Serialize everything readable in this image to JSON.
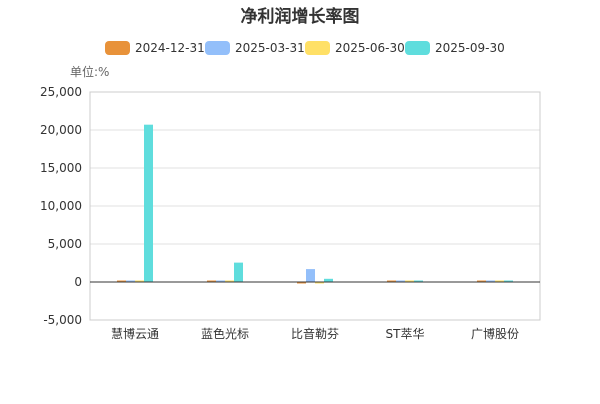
{
  "chart_data": {
    "type": "bar",
    "title": "净利润增长率图",
    "unit_label": "单位:%",
    "categories": [
      "慧博云通",
      "蓝色光标",
      "比音勒芬",
      "ST萃华",
      "广博股份"
    ],
    "series": [
      {
        "name": "2024-12-31",
        "color": "#E8923A",
        "values": [
          120,
          8,
          -60,
          10,
          25
        ]
      },
      {
        "name": "2025-03-31",
        "color": "#93BFFA",
        "values": [
          5,
          10,
          1700,
          30,
          50
        ]
      },
      {
        "name": "2025-06-30",
        "color": "#FFE066",
        "values": [
          40,
          15,
          -30,
          90,
          100
        ]
      },
      {
        "name": "2025-09-30",
        "color": "#5FDDDD",
        "values": [
          20700,
          2550,
          420,
          120,
          20
        ]
      }
    ],
    "ylim": [
      -5000,
      25000
    ],
    "yticks": [
      -5000,
      0,
      5000,
      10000,
      15000,
      20000,
      25000
    ],
    "ytick_labels": [
      "-5,000",
      "0",
      "5,000",
      "10,000",
      "15,000",
      "20,000",
      "25,000"
    ],
    "grid": true,
    "legend_position": "top"
  }
}
